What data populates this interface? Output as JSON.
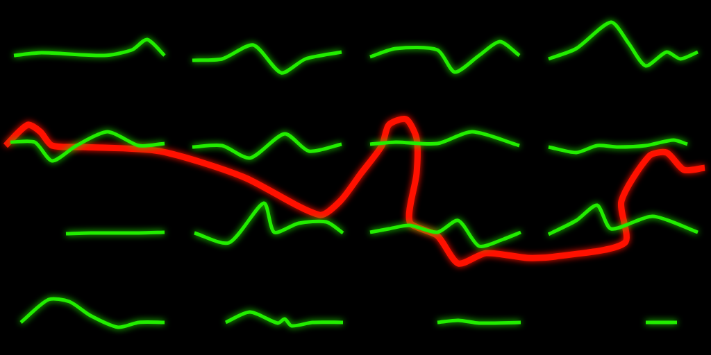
{
  "chart_data": {
    "type": "line",
    "xlim": [
      0,
      1024
    ],
    "ylim": [
      0,
      512
    ],
    "grid": false,
    "tick_labels": false,
    "series": [
      {
        "color": "#22ee00",
        "values": [
          [
            20,
            432
          ],
          [
            60,
            436
          ],
          [
            150,
            432
          ],
          [
            190,
            440
          ],
          [
            212,
            455
          ],
          [
            237,
            432
          ]
        ]
      },
      {
        "color": "#22ee00",
        "values": [
          [
            277,
            425
          ],
          [
            320,
            427
          ],
          [
            365,
            447
          ],
          [
            405,
            407
          ],
          [
            440,
            427
          ],
          [
            492,
            437
          ]
        ]
      },
      {
        "color": "#22ee00",
        "values": [
          [
            533,
            430
          ],
          [
            570,
            442
          ],
          [
            630,
            440
          ],
          [
            655,
            408
          ],
          [
            690,
            432
          ],
          [
            720,
            452
          ],
          [
            748,
            432
          ]
        ]
      },
      {
        "color": "#22ee00",
        "values": [
          [
            790,
            427
          ],
          [
            830,
            442
          ],
          [
            880,
            480
          ],
          [
            905,
            450
          ],
          [
            930,
            417
          ],
          [
            960,
            437
          ],
          [
            980,
            427
          ],
          [
            1005,
            437
          ]
        ]
      },
      {
        "color": "#22ee00",
        "values": [
          [
            15,
            307
          ],
          [
            50,
            307
          ],
          [
            75,
            280
          ],
          [
            110,
            302
          ],
          [
            155,
            322
          ],
          [
            200,
            302
          ],
          [
            237,
            305
          ]
        ]
      },
      {
        "color": "#22ee00",
        "values": [
          [
            277,
            300
          ],
          [
            320,
            302
          ],
          [
            360,
            284
          ],
          [
            410,
            319
          ],
          [
            445,
            294
          ],
          [
            492,
            304
          ]
        ]
      },
      {
        "color": "#22ee00",
        "values": [
          [
            533,
            304
          ],
          [
            570,
            307
          ],
          [
            630,
            305
          ],
          [
            680,
            322
          ],
          [
            748,
            302
          ]
        ]
      },
      {
        "color": "#22ee00",
        "values": [
          [
            790,
            300
          ],
          [
            830,
            292
          ],
          [
            860,
            302
          ],
          [
            890,
            300
          ],
          [
            930,
            302
          ],
          [
            970,
            310
          ],
          [
            990,
            304
          ]
        ]
      },
      {
        "color": "#22ee00",
        "values": [
          [
            95,
            175
          ],
          [
            130,
            176
          ],
          [
            200,
            176
          ],
          [
            237,
            177
          ]
        ]
      },
      {
        "color": "#22ee00",
        "values": [
          [
            280,
            176
          ],
          [
            330,
            162
          ],
          [
            380,
            219
          ],
          [
            395,
            177
          ],
          [
            430,
            190
          ],
          [
            470,
            192
          ],
          [
            494,
            176
          ]
        ]
      },
      {
        "color": "#22ee00",
        "values": [
          [
            533,
            177
          ],
          [
            560,
            182
          ],
          [
            590,
            187
          ],
          [
            630,
            177
          ],
          [
            660,
            194
          ],
          [
            690,
            157
          ],
          [
            725,
            167
          ],
          [
            750,
            177
          ]
        ]
      },
      {
        "color": "#22ee00",
        "values": [
          [
            790,
            174
          ],
          [
            830,
            194
          ],
          [
            860,
            216
          ],
          [
            880,
            182
          ],
          [
            940,
            200
          ],
          [
            1005,
            177
          ]
        ]
      },
      {
        "color": "#22ee00",
        "values": [
          [
            30,
            47
          ],
          [
            70,
            80
          ],
          [
            100,
            77
          ],
          [
            130,
            57
          ],
          [
            170,
            40
          ],
          [
            200,
            47
          ],
          [
            237,
            47
          ]
        ]
      },
      {
        "color": "#22ee00",
        "values": [
          [
            325,
            47
          ],
          [
            360,
            62
          ],
          [
            400,
            46
          ],
          [
            410,
            52
          ],
          [
            420,
            42
          ],
          [
            450,
            47
          ],
          [
            494,
            47
          ]
        ]
      },
      {
        "color": "#22ee00",
        "values": [
          [
            630,
            47
          ],
          [
            660,
            50
          ],
          [
            690,
            46
          ],
          [
            750,
            47
          ]
        ]
      },
      {
        "color": "#22ee00",
        "values": [
          [
            930,
            47
          ],
          [
            975,
            47
          ]
        ]
      },
      {
        "color": "#ff1100",
        "values": [
          [
            8,
            302
          ],
          [
            40,
            332
          ],
          [
            58,
            322
          ],
          [
            75,
            302
          ],
          [
            120,
            300
          ],
          [
            230,
            294
          ],
          [
            350,
            257
          ],
          [
            460,
            202
          ],
          [
            490,
            222
          ],
          [
            520,
            262
          ],
          [
            550,
            302
          ],
          [
            560,
            332
          ],
          [
            585,
            340
          ],
          [
            600,
            312
          ],
          [
            600,
            262
          ],
          [
            590,
            192
          ],
          [
            630,
            172
          ],
          [
            660,
            132
          ],
          [
            700,
            147
          ],
          [
            760,
            140
          ],
          [
            800,
            142
          ],
          [
            900,
            162
          ],
          [
            895,
            222
          ],
          [
            935,
            287
          ],
          [
            960,
            292
          ],
          [
            985,
            267
          ],
          [
            1015,
            270
          ]
        ]
      }
    ]
  }
}
